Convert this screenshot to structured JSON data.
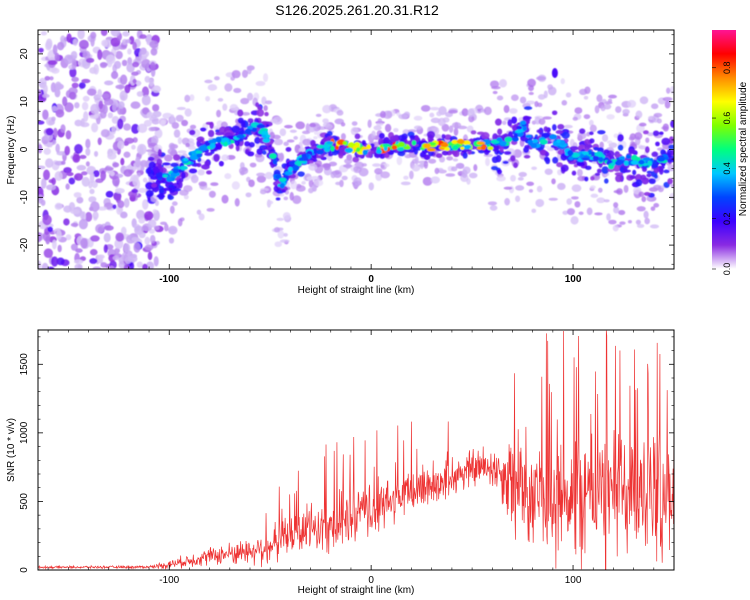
{
  "title": "S126.2025.261.20.31.R12",
  "chart_data": [
    {
      "type": "heatmap",
      "xlabel": "Height of straight line (km)",
      "ylabel": "Frequency (Hz)",
      "xlim": [
        -165,
        150
      ],
      "ylim": [
        -25,
        25
      ],
      "xticks": [
        -100,
        0,
        100
      ],
      "yticks": [
        -20,
        -10,
        0,
        10,
        20
      ],
      "colorbar": {
        "label": "Normalized spectral amplitude",
        "range": [
          0,
          0.95
        ],
        "ticks": [
          "0.0",
          "0.2",
          "0.4",
          "0.6",
          "0.8"
        ],
        "colors": [
          "#ffffff",
          "#8a2be2",
          "#3b00ff",
          "#0044ff",
          "#00c8ff",
          "#00ff7f",
          "#7fff00",
          "#ffff00",
          "#ff8c00",
          "#ff0000",
          "#ff1493"
        ]
      },
      "ridge": {
        "description_points_x": [
          -110,
          -100,
          -90,
          -80,
          -70,
          -60,
          -55,
          -50,
          -45,
          -40,
          -30,
          -20,
          -10,
          0,
          10,
          20,
          30,
          40,
          50,
          60,
          70,
          75,
          80,
          90,
          100,
          110,
          120,
          130,
          140,
          148
        ],
        "description_points_y": [
          -5,
          -6,
          -2,
          1,
          2,
          4,
          5,
          1,
          -8,
          -4,
          -1,
          1,
          0.5,
          0,
          0.5,
          1,
          0.5,
          1,
          1,
          1,
          2,
          5,
          1,
          3,
          -2,
          -1,
          -3,
          -2,
          -3,
          -1
        ]
      }
    },
    {
      "type": "line",
      "xlabel": "Height of straight line (km)",
      "ylabel": "SNR (10 * v/v)",
      "xlim": [
        -165,
        150
      ],
      "ylim": [
        0,
        1750
      ],
      "xticks": [
        -100,
        0,
        100
      ],
      "yticks": [
        0,
        500,
        1000,
        1500
      ],
      "color": "#ee3333",
      "envelope_x": [
        -165,
        -110,
        -100,
        -80,
        -60,
        -50,
        -40,
        -30,
        -20,
        -10,
        0,
        10,
        20,
        30,
        40,
        50,
        60,
        65,
        70,
        80,
        90,
        100,
        110,
        120,
        130,
        140,
        150
      ],
      "envelope_base": [
        20,
        22,
        40,
        100,
        140,
        170,
        250,
        300,
        330,
        380,
        430,
        500,
        570,
        630,
        680,
        740,
        760,
        700,
        640,
        600,
        580,
        560,
        560,
        560,
        560,
        560,
        560
      ],
      "envelope_amp": [
        10,
        12,
        40,
        80,
        120,
        160,
        200,
        230,
        250,
        270,
        250,
        220,
        220,
        220,
        200,
        180,
        200,
        260,
        500,
        560,
        600,
        620,
        650,
        650,
        640,
        600,
        560
      ]
    }
  ]
}
